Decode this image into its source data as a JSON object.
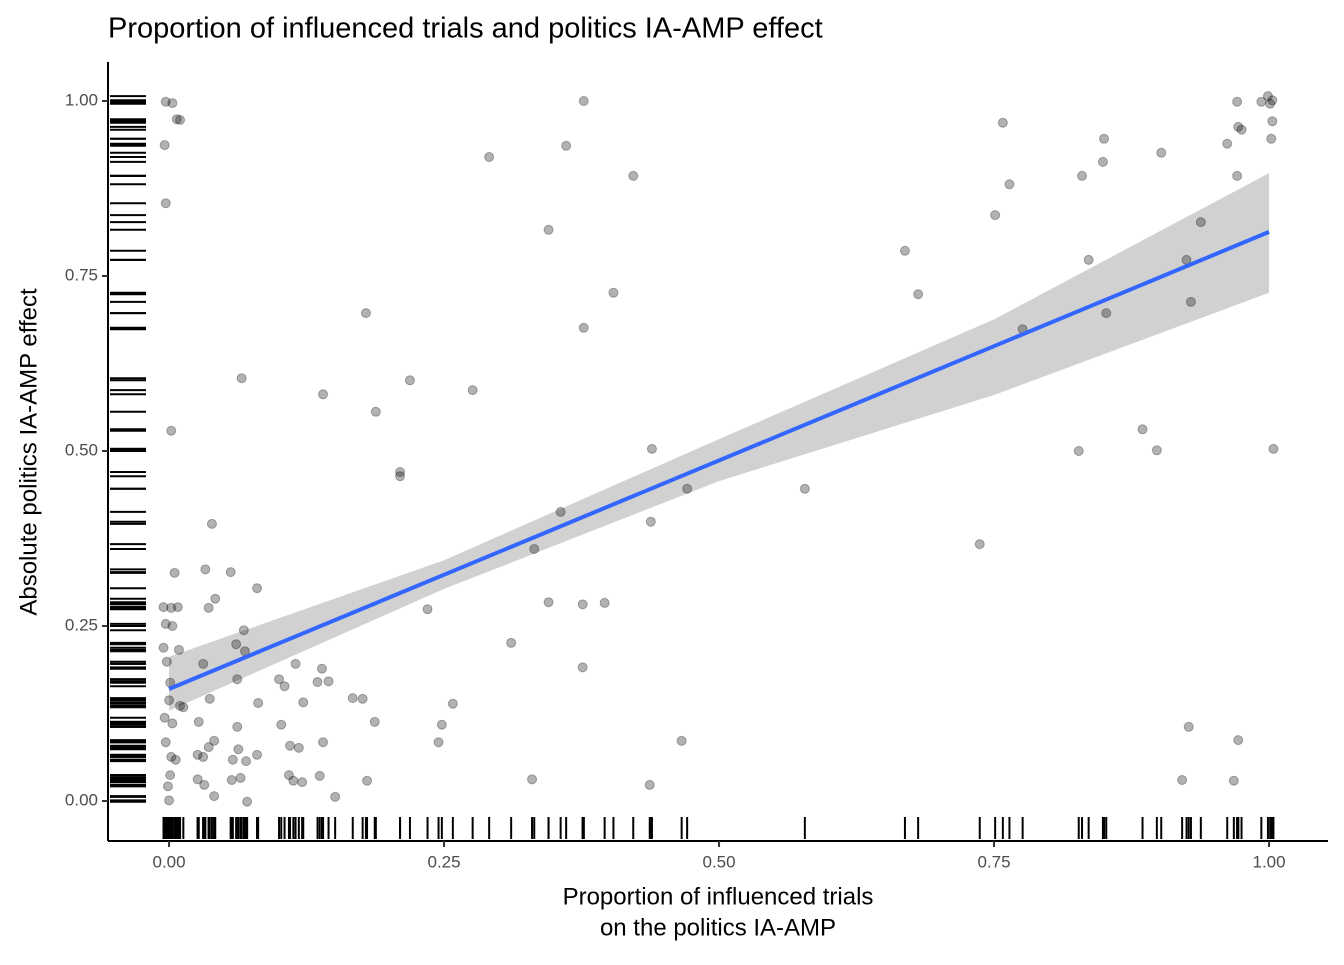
{
  "chart_data": {
    "type": "scatter",
    "title": "Proportion of influenced trials and politics IA-AMP effect",
    "x_label": [
      "Proportion of influenced trials",
      "on the politics IA-AMP"
    ],
    "y_label": "Absolute politics IA-AMP effect",
    "xlim": [
      -0.0555,
      1.0536
    ],
    "ylim": [
      -0.0571,
      1.0557
    ],
    "xticks": [
      {
        "value": 0,
        "label": "0.00"
      },
      {
        "value": 0.25,
        "label": "0.25"
      },
      {
        "value": 0.5,
        "label": "0.50"
      },
      {
        "value": 0.75,
        "label": "0.75"
      },
      {
        "value": 1,
        "label": "1.00"
      }
    ],
    "yticks": [
      {
        "value": 0,
        "label": "0.00"
      },
      {
        "value": 0.25,
        "label": "0.25"
      },
      {
        "value": 0.5,
        "label": "0.50"
      },
      {
        "value": 0.75,
        "label": "0.75"
      },
      {
        "value": 1,
        "label": "1.00"
      }
    ],
    "points": {
      "color": "#000000",
      "alpha": 0.3,
      "x": [
        -0.003,
        0.003,
        0.007,
        0.01,
        -0.004,
        -0.003,
        0.002,
        0.066,
        0.039,
        0.005,
        0.033,
        0.056,
        0.08,
        0.042,
        0.036,
        -0.005,
        0.008,
        0.002,
        -0.003,
        0.003,
        0.068,
        0.061,
        -0.005,
        0.009,
        0.069,
        0.031,
        -0.002,
        0.115,
        0.139,
        0.062,
        0.1,
        0.135,
        0.145,
        0.001,
        0.105,
        0.167,
        0.176,
        0.122,
        0.081,
        0.037,
        0,
        0.01,
        0.013,
        0.258,
        0.248,
        0.187,
        0.102,
        0.062,
        0.027,
        -0.004,
        0.003,
        -0.003,
        0.041,
        0.036,
        0.11,
        0.118,
        0.14,
        0.245,
        0.063,
        0.026,
        0.08,
        0.031,
        0.058,
        0.006,
        0.07,
        0.002,
        0.109,
        0.137,
        0.065,
        0.057,
        0.026,
        0.001,
        0.18,
        0.121,
        0.113,
        0.032,
        -0.001,
        0.041,
        0.151,
        0.071,
        0,
        0.291,
        0.377,
        0.361,
        0.422,
        0.345,
        0.404,
        0.377,
        0.179,
        0.219,
        0.276,
        0.14,
        0.188,
        0.21,
        0.21,
        0.439,
        0.471,
        0.356,
        0.438,
        0.332,
        0.235,
        0.345,
        0.376,
        0.396,
        0.311,
        0.376,
        0.466,
        0.33,
        0.437,
        0.578,
        0.669,
        0.681,
        0.758,
        0.764,
        0.751,
        0.776,
        0.737,
        0.85,
        0.849,
        0.83,
        0.836,
        0.852,
        0.885,
        0.827,
        0.898,
        0.902,
        0.962,
        0.971,
        0.971,
        0.938,
        0.925,
        0.929,
        0.927,
        0.921,
        0.972,
        0.968,
        0.999,
        1.003,
        0.993,
        1.001,
        0.972,
        0.975,
        1.003,
        1.002,
        1.004
      ],
      "y": [
        0.999,
        0.997,
        0.974,
        0.973,
        0.937,
        0.854,
        0.529,
        0.604,
        0.396,
        0.326,
        0.331,
        0.327,
        0.304,
        0.289,
        0.276,
        0.277,
        0.277,
        0.276,
        0.253,
        0.25,
        0.244,
        0.224,
        0.219,
        0.216,
        0.214,
        0.196,
        0.199,
        0.196,
        0.189,
        0.174,
        0.174,
        0.17,
        0.171,
        0.169,
        0.164,
        0.147,
        0.146,
        0.141,
        0.14,
        0.146,
        0.144,
        0.136,
        0.134,
        0.139,
        0.109,
        0.113,
        0.109,
        0.106,
        0.113,
        0.119,
        0.111,
        0.084,
        0.086,
        0.077,
        0.079,
        0.076,
        0.084,
        0.084,
        0.074,
        0.066,
        0.066,
        0.063,
        0.059,
        0.059,
        0.057,
        0.063,
        0.037,
        0.036,
        0.033,
        0.03,
        0.031,
        0.037,
        0.029,
        0.027,
        0.029,
        0.023,
        0.021,
        0.007,
        0.006,
        -0.001,
        0.001,
        0.92,
        1,
        0.936,
        0.893,
        0.816,
        0.726,
        0.676,
        0.697,
        0.601,
        0.587,
        0.581,
        0.556,
        0.47,
        0.464,
        0.503,
        0.446,
        0.413,
        0.399,
        0.36,
        0.274,
        0.284,
        0.281,
        0.283,
        0.226,
        0.191,
        0.086,
        0.031,
        0.023,
        0.446,
        0.786,
        0.724,
        0.969,
        0.881,
        0.837,
        0.674,
        0.367,
        0.946,
        0.913,
        0.893,
        0.773,
        0.697,
        0.531,
        0.5,
        0.501,
        0.926,
        0.939,
        0.999,
        0.893,
        0.827,
        0.773,
        0.713,
        0.106,
        0.03,
        0.087,
        0.029,
        1.007,
        1.001,
        0.999,
        0.996,
        0.963,
        0.959,
        0.971,
        0.946,
        0.503
      ]
    },
    "fit": {
      "color": "#3366ff",
      "x": [
        0,
        1
      ],
      "values": [
        0.16,
        0.813
      ]
    },
    "band": {
      "color": "#999999",
      "x": [
        0,
        0.25,
        0.5,
        0.75,
        1
      ],
      "lower": [
        0.129,
        0.303,
        0.457,
        0.58,
        0.726
      ],
      "upper": [
        0.206,
        0.344,
        0.517,
        0.688,
        0.897
      ]
    }
  }
}
